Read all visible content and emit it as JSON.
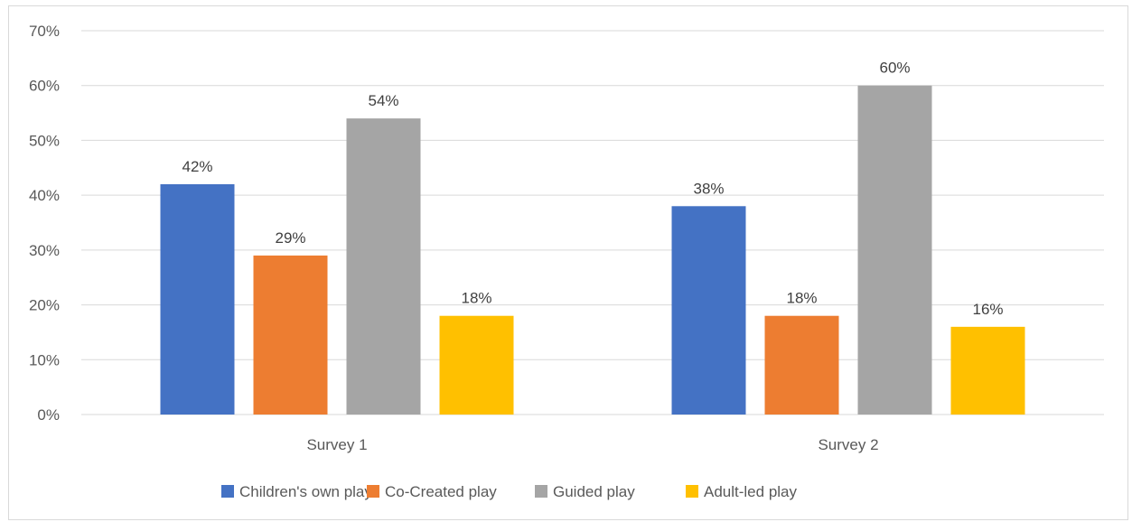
{
  "chart_data": {
    "type": "bar",
    "categories": [
      "Survey 1",
      "Survey 2"
    ],
    "series": [
      {
        "name": "Children's own play",
        "values": [
          0.42,
          0.38
        ],
        "labels": [
          "42%",
          "38%"
        ],
        "color": "#4472C4"
      },
      {
        "name": "Co-Created play",
        "values": [
          0.29,
          0.18
        ],
        "labels": [
          "29%",
          "18%"
        ],
        "color": "#ED7D31"
      },
      {
        "name": "Guided play",
        "values": [
          0.54,
          0.6
        ],
        "labels": [
          "54%",
          "60%"
        ],
        "color": "#A5A5A5"
      },
      {
        "name": "Adult-led play",
        "values": [
          0.18,
          0.16
        ],
        "labels": [
          "18%",
          "16%"
        ],
        "color": "#FFC000"
      }
    ],
    "yticks": [
      "0%",
      "10%",
      "20%",
      "30%",
      "40%",
      "50%",
      "60%",
      "70%"
    ],
    "ylim": [
      0,
      0.7
    ],
    "grid": true,
    "legend": "bottom",
    "gridline_color": "#d9d9d9"
  }
}
